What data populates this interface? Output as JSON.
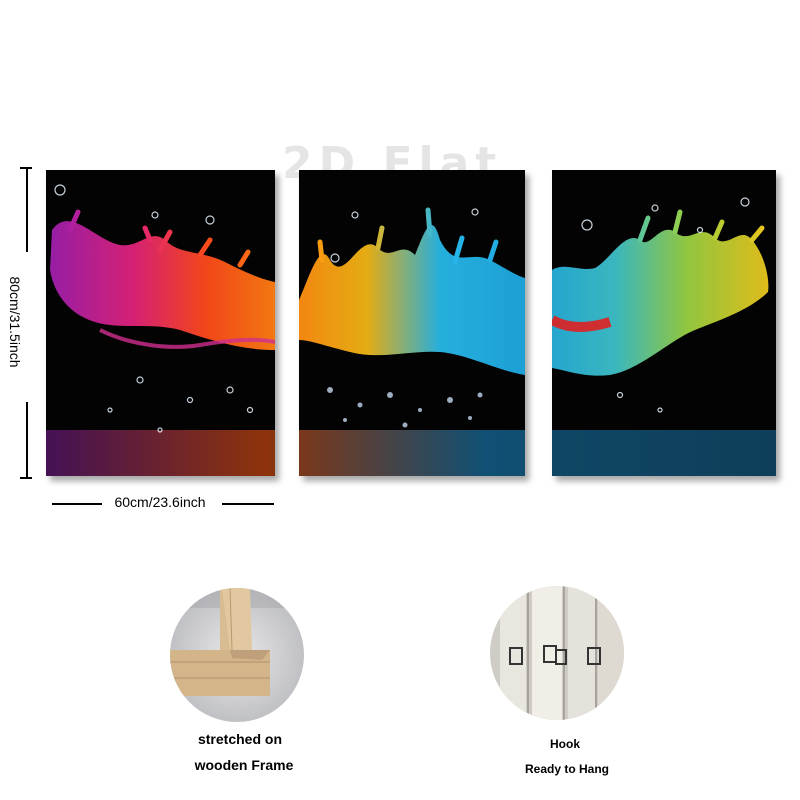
{
  "watermark": "2D Flat",
  "dimensions": {
    "height_label": "80cm/31.5inch",
    "width_label": "60cm/23.6inch"
  },
  "panels": [
    {
      "name": "left-panel"
    },
    {
      "name": "middle-panel"
    },
    {
      "name": "right-panel"
    }
  ],
  "features": [
    {
      "line1": "stretched on",
      "line2": "wooden Frame"
    },
    {
      "line1": "Hook",
      "line2": "Ready to Hang"
    }
  ],
  "colors": {
    "background": "#ffffff",
    "panel_bg": "#030303"
  }
}
